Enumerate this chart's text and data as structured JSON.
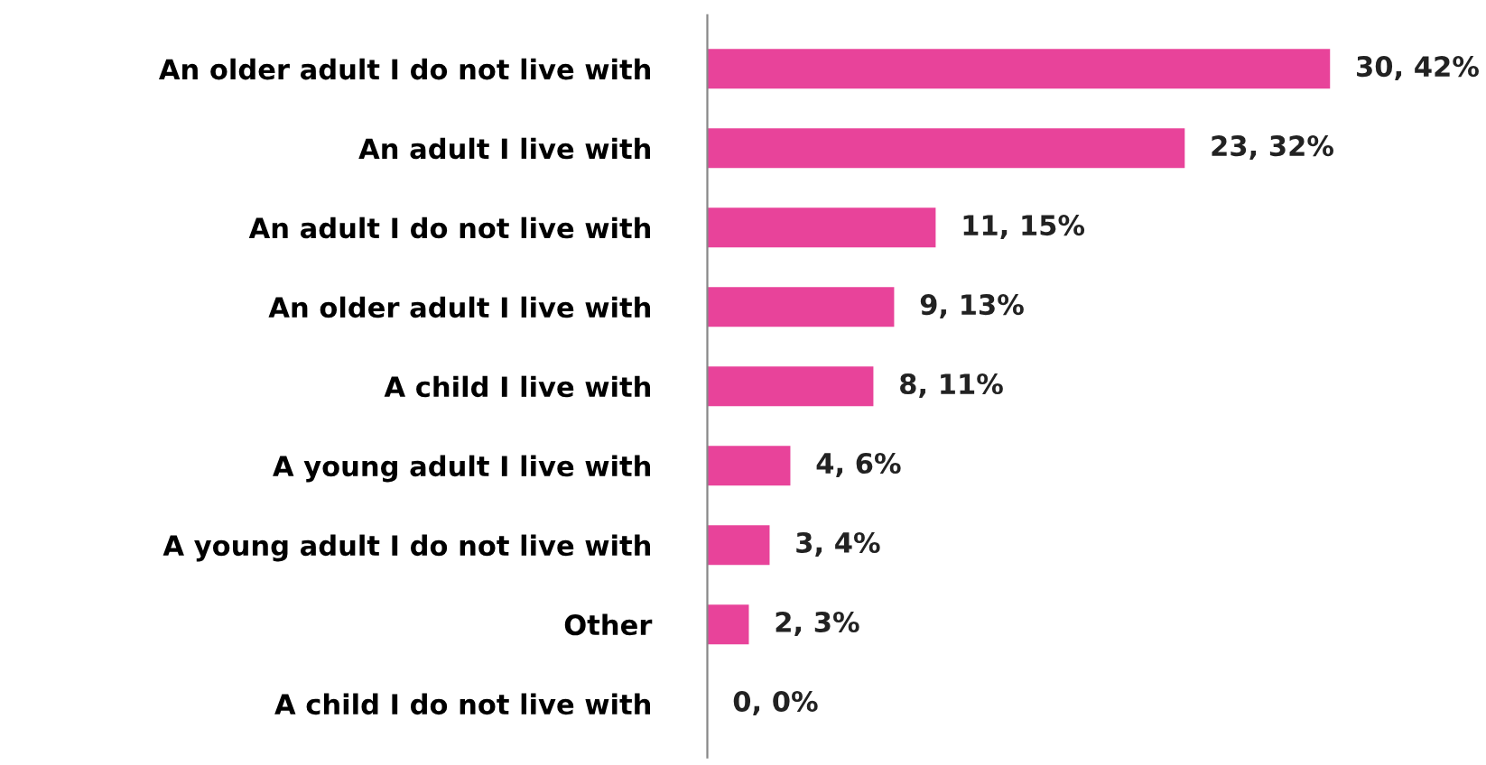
{
  "chart_data": {
    "type": "bar",
    "orientation": "horizontal",
    "categories": [
      "An older adult I do not live with",
      "An adult I live with",
      "An adult I do not live with",
      "An older adult I live with",
      "A child I live with",
      "A young adult I live with",
      "A young adult I do not live with",
      "Other",
      "A child I do not live with"
    ],
    "values": [
      30,
      23,
      11,
      9,
      8,
      4,
      3,
      2,
      0
    ],
    "value_labels": [
      "30, 42%",
      "23, 32%",
      "11, 15%",
      "9, 13%",
      "8, 11%",
      "4, 6%",
      "3, 4%",
      "2, 3%",
      "0, 0%"
    ],
    "color": "#e8439a",
    "grid": false,
    "legend": false
  }
}
